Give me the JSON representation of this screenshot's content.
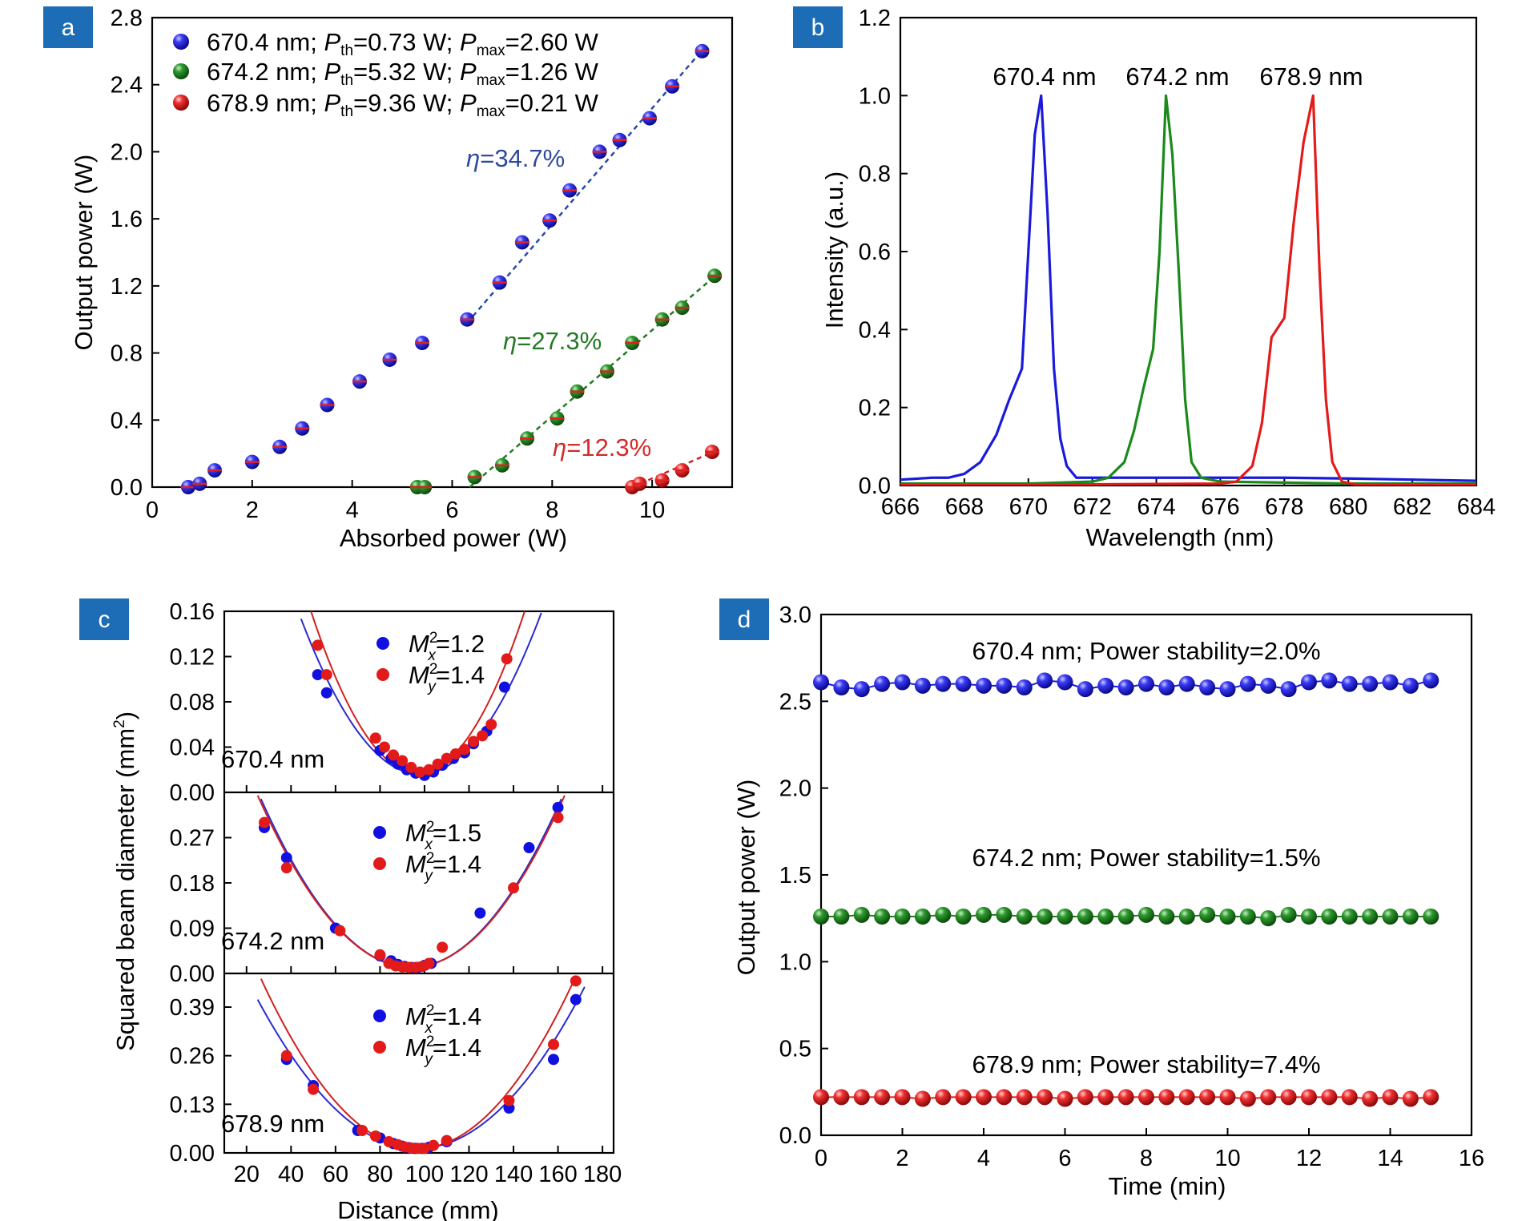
{
  "colors": {
    "blue": "#1010e0",
    "green": "#1d7d1d",
    "red": "#e31a1a",
    "badge": "#1c6db6",
    "blue_fit": "#2949a8",
    "green_fit": "#237a23",
    "red_fit": "#c8242a",
    "eta_blue": "#2e4a9e",
    "eta_green": "#237a23",
    "eta_red": "#d42b2b"
  },
  "chart_data": [
    {
      "panel": "a",
      "type": "scatter",
      "xlabel": "Absorbed power (W)",
      "ylabel": "Output power (W)",
      "xlim": [
        0,
        11.6
      ],
      "ylim": [
        0,
        2.8
      ],
      "xticks": [
        "0",
        "2",
        "4",
        "6",
        "8",
        "10"
      ],
      "yticks": [
        "0.0",
        "0.4",
        "0.8",
        "1.2",
        "1.6",
        "2.0",
        "2.4",
        "2.8"
      ],
      "legend": [
        {
          "wl": "670.4 nm; ",
          "p": "P",
          "th": "th",
          "eq1": "=0.73 W; ",
          "pm": "P",
          "max": "max",
          "eq2": "=2.60 W"
        },
        {
          "wl": "674.2 nm; ",
          "p": "P",
          "th": "th",
          "eq1": "=5.32 W; ",
          "pm": "P",
          "max": "max",
          "eq2": "=1.26 W"
        },
        {
          "wl": "678.9 nm; ",
          "p": "P",
          "th": "th",
          "eq1": "=9.36 W; ",
          "pm": "P",
          "max": "max",
          "eq2": "=0.21 W"
        }
      ],
      "annotations": [
        {
          "eta": "η",
          "val": "=34.7%"
        },
        {
          "eta": "η",
          "val": "=27.3%"
        },
        {
          "eta": "η",
          "val": "=12.3%"
        }
      ],
      "series": [
        {
          "name": "670.4 nm",
          "x": [
            0.72,
            0.95,
            1.25,
            2.0,
            2.55,
            3.0,
            3.5,
            4.15,
            4.75,
            5.4,
            6.3,
            6.95,
            7.4,
            7.95,
            8.35,
            8.95,
            9.35,
            9.95,
            10.4,
            11.0
          ],
          "y": [
            0.0,
            0.02,
            0.1,
            0.15,
            0.24,
            0.35,
            0.49,
            0.63,
            0.76,
            0.86,
            1.0,
            1.22,
            1.46,
            1.59,
            1.77,
            2.0,
            2.07,
            2.2,
            2.39,
            2.6
          ],
          "fit": {
            "x": [
              6.3,
              11.1
            ],
            "y": [
              0.98,
              2.64
            ]
          }
        },
        {
          "name": "674.2 nm",
          "x": [
            5.3,
            5.45,
            6.45,
            7.0,
            7.5,
            8.1,
            8.5,
            9.1,
            9.6,
            10.2,
            10.6,
            11.25
          ],
          "y": [
            0.0,
            0.0,
            0.06,
            0.13,
            0.29,
            0.41,
            0.57,
            0.69,
            0.86,
            1.0,
            1.07,
            1.26
          ],
          "fit": {
            "x": [
              6.35,
              11.3
            ],
            "y": [
              0.0,
              1.27
            ]
          }
        },
        {
          "name": "678.9 nm",
          "x": [
            9.6,
            9.75,
            10.2,
            10.6,
            11.2
          ],
          "y": [
            0.0,
            0.02,
            0.04,
            0.1,
            0.21
          ],
          "fit": {
            "x": [
              9.6,
              11.3
            ],
            "y": [
              0.0,
              0.22
            ]
          }
        }
      ]
    },
    {
      "panel": "b",
      "type": "line",
      "xlabel": "Wavelength (nm)",
      "ylabel": "Intensity (a.u.)",
      "xlim": [
        666,
        684
      ],
      "ylim": [
        0,
        1.2
      ],
      "xticks": [
        "666",
        "668",
        "670",
        "672",
        "674",
        "676",
        "678",
        "680",
        "682",
        "684"
      ],
      "yticks": [
        "0.0",
        "0.2",
        "0.4",
        "0.6",
        "0.8",
        "1.0",
        "1.2"
      ],
      "series": [
        {
          "name": "670.4 nm",
          "x": [
            666,
            667,
            667.5,
            668,
            668.5,
            669,
            669.4,
            669.8,
            670.0,
            670.2,
            670.4,
            670.6,
            670.8,
            671.0,
            671.2,
            671.5,
            672,
            673,
            674,
            676,
            678,
            680,
            682,
            684
          ],
          "y": [
            0.015,
            0.02,
            0.02,
            0.03,
            0.06,
            0.13,
            0.22,
            0.3,
            0.6,
            0.9,
            1.0,
            0.7,
            0.3,
            0.12,
            0.05,
            0.02,
            0.02,
            0.02,
            0.02,
            0.02,
            0.02,
            0.018,
            0.015,
            0.012
          ]
        },
        {
          "name": "674.2 nm",
          "x": [
            666,
            670,
            672,
            672.5,
            673,
            673.3,
            673.6,
            673.9,
            674.1,
            674.3,
            674.5,
            674.7,
            674.9,
            675.1,
            675.4,
            676,
            680,
            684
          ],
          "y": [
            0.005,
            0.005,
            0.01,
            0.02,
            0.06,
            0.14,
            0.25,
            0.35,
            0.6,
            1.0,
            0.85,
            0.55,
            0.22,
            0.06,
            0.02,
            0.01,
            0.005,
            0.005
          ]
        },
        {
          "name": "678.9 nm",
          "x": [
            666,
            672,
            676,
            676.5,
            677,
            677.3,
            677.6,
            678.0,
            678.3,
            678.6,
            678.9,
            679.1,
            679.3,
            679.5,
            679.8,
            680.2,
            684
          ],
          "y": [
            0.003,
            0.003,
            0.005,
            0.01,
            0.05,
            0.16,
            0.38,
            0.43,
            0.68,
            0.88,
            1.0,
            0.55,
            0.22,
            0.06,
            0.01,
            0.003,
            0.003
          ]
        }
      ],
      "peak_labels": [
        "670.4 nm",
        "674.2 nm",
        "678.9 nm"
      ]
    },
    {
      "panel": "c",
      "type": "scatter",
      "xlabel": "Distance (mm)",
      "ylabel": "Squared beam diameter (mm",
      "ylabel_sup": "2",
      "ylabel_close": ")",
      "xlim": [
        10,
        185
      ],
      "xticks": [
        "20",
        "40",
        "60",
        "80",
        "100",
        "120",
        "140",
        "160",
        "180"
      ],
      "subplots": [
        {
          "label": "670.4 nm",
          "ylim": [
            0,
            0.16
          ],
          "yticks": [
            "0.00",
            "0.04",
            "0.08",
            "0.12",
            "0.16"
          ],
          "legend": [
            {
              "m": "M",
              "sup": "2",
              "sub": "x",
              "val": "=1.2"
            },
            {
              "m": "M",
              "sup": "2",
              "sub": "y",
              "val": "=1.4"
            }
          ],
          "x_series": {
            "x": [
              52,
              56,
              80,
              85,
              88,
              92,
              96,
              100,
              104,
              108,
              113,
              118,
              122,
              128,
              136
            ],
            "y": [
              0.104,
              0.088,
              0.037,
              0.03,
              0.025,
              0.02,
              0.017,
              0.015,
              0.018,
              0.024,
              0.03,
              0.035,
              0.043,
              0.054,
              0.093
            ]
          },
          "y_series": {
            "x": [
              52,
              56,
              78,
              82,
              86,
              90,
              94,
              98,
              102,
              106,
              110,
              114,
              118,
              122,
              126,
              130,
              137
            ],
            "y": [
              0.13,
              0.104,
              0.048,
              0.04,
              0.033,
              0.028,
              0.022,
              0.018,
              0.02,
              0.025,
              0.03,
              0.034,
              0.038,
              0.045,
              0.05,
              0.06,
              0.118
            ]
          },
          "x_fit": {
            "a": 0.016,
            "b": 4.8e-05,
            "c": 98
          },
          "y_fit": {
            "a": 0.017,
            "b": 6.2e-05,
            "c": 97
          }
        },
        {
          "label": "674.2 nm",
          "ylim": [
            0,
            0.36
          ],
          "yticks": [
            "0.00",
            "0.09",
            "0.18",
            "0.27"
          ],
          "legend": [
            {
              "m": "M",
              "sup": "2",
              "sub": "x",
              "val": "=1.5"
            },
            {
              "m": "M",
              "sup": "2",
              "sub": "y",
              "val": "=1.4"
            }
          ],
          "x_series": {
            "x": [
              28,
              38,
              60,
              80,
              85,
              88,
              91,
              94,
              97,
              100,
              103,
              125,
              147,
              160
            ],
            "y": [
              0.29,
              0.23,
              0.09,
              0.035,
              0.025,
              0.018,
              0.014,
              0.012,
              0.012,
              0.016,
              0.02,
              0.12,
              0.25,
              0.33
            ]
          },
          "y_series": {
            "x": [
              28,
              38,
              62,
              80,
              84,
              87,
              90,
              93,
              96,
              99,
              102,
              108,
              140,
              160
            ],
            "y": [
              0.3,
              0.21,
              0.085,
              0.037,
              0.02,
              0.015,
              0.013,
              0.012,
              0.012,
              0.014,
              0.02,
              0.052,
              0.17,
              0.31
            ]
          },
          "x_fit": {
            "a": 0.012,
            "b": 7.35e-05,
            "c": 94
          },
          "y_fit": {
            "a": 0.012,
            "b": 7.18e-05,
            "c": 94
          }
        },
        {
          "label": "678.9 nm",
          "ylim": [
            0,
            0.48
          ],
          "yticks": [
            "0.00",
            "0.13",
            "0.26",
            "0.39"
          ],
          "legend": [
            {
              "m": "M",
              "sup": "2",
              "sub": "x",
              "val": "=1.4"
            },
            {
              "m": "M",
              "sup": "2",
              "sub": "y",
              "val": "=1.4"
            }
          ],
          "x_series": {
            "x": [
              38,
              50,
              70,
              80,
              86,
              90,
              93,
              96,
              99,
              102,
              110,
              138,
              158,
              168
            ],
            "y": [
              0.25,
              0.18,
              0.06,
              0.04,
              0.025,
              0.018,
              0.014,
              0.012,
              0.012,
              0.015,
              0.03,
              0.12,
              0.25,
              0.41
            ]
          },
          "y_series": {
            "x": [
              38,
              50,
              72,
              78,
              84,
              88,
              91,
              94,
              97,
              100,
              104,
              110,
              138,
              158,
              168
            ],
            "y": [
              0.26,
              0.17,
              0.06,
              0.045,
              0.03,
              0.022,
              0.016,
              0.013,
              0.012,
              0.012,
              0.02,
              0.033,
              0.14,
              0.29,
              0.46
            ]
          },
          "x_fit": {
            "a": 0.012,
            "b": 7.68e-05,
            "c": 97
          },
          "y_fit": {
            "a": 0.012,
            "b": 9.13e-05,
            "c": 97
          }
        }
      ]
    },
    {
      "panel": "d",
      "type": "line",
      "xlabel": "Time (min)",
      "ylabel": "Output power (W)",
      "xlim": [
        0,
        16
      ],
      "ylim": [
        0,
        3.0
      ],
      "xticks": [
        "0",
        "2",
        "4",
        "6",
        "8",
        "10",
        "12",
        "14",
        "16"
      ],
      "yticks": [
        "0.0",
        "0.5",
        "1.0",
        "1.5",
        "2.0",
        "2.5",
        "3.0"
      ],
      "annotations": [
        "670.4 nm; Power stability=2.0%",
        "674.2 nm; Power stability=1.5%",
        "678.9 nm; Power stability=7.4%"
      ],
      "time": [
        0,
        0.5,
        1,
        1.5,
        2,
        2.5,
        3,
        3.5,
        4,
        4.5,
        5,
        5.5,
        6,
        6.5,
        7,
        7.5,
        8,
        8.5,
        9,
        9.5,
        10,
        10.5,
        11,
        11.5,
        12,
        12.5,
        13,
        13.5,
        14,
        14.5,
        15
      ],
      "series": [
        {
          "name": "670.4 nm",
          "values": [
            2.61,
            2.58,
            2.57,
            2.6,
            2.61,
            2.59,
            2.6,
            2.6,
            2.59,
            2.59,
            2.58,
            2.62,
            2.61,
            2.57,
            2.59,
            2.58,
            2.6,
            2.58,
            2.6,
            2.58,
            2.57,
            2.6,
            2.59,
            2.57,
            2.61,
            2.62,
            2.6,
            2.6,
            2.61,
            2.59,
            2.62
          ]
        },
        {
          "name": "674.2 nm",
          "values": [
            1.26,
            1.26,
            1.27,
            1.26,
            1.26,
            1.26,
            1.27,
            1.26,
            1.27,
            1.27,
            1.26,
            1.26,
            1.26,
            1.26,
            1.26,
            1.26,
            1.27,
            1.26,
            1.26,
            1.27,
            1.26,
            1.26,
            1.25,
            1.27,
            1.26,
            1.26,
            1.26,
            1.26,
            1.26,
            1.26,
            1.26
          ]
        },
        {
          "name": "678.9 nm",
          "values": [
            0.22,
            0.22,
            0.22,
            0.22,
            0.22,
            0.21,
            0.22,
            0.22,
            0.22,
            0.22,
            0.22,
            0.22,
            0.21,
            0.22,
            0.22,
            0.22,
            0.22,
            0.22,
            0.22,
            0.22,
            0.22,
            0.21,
            0.22,
            0.22,
            0.22,
            0.22,
            0.22,
            0.21,
            0.22,
            0.21,
            0.22
          ]
        }
      ]
    }
  ]
}
